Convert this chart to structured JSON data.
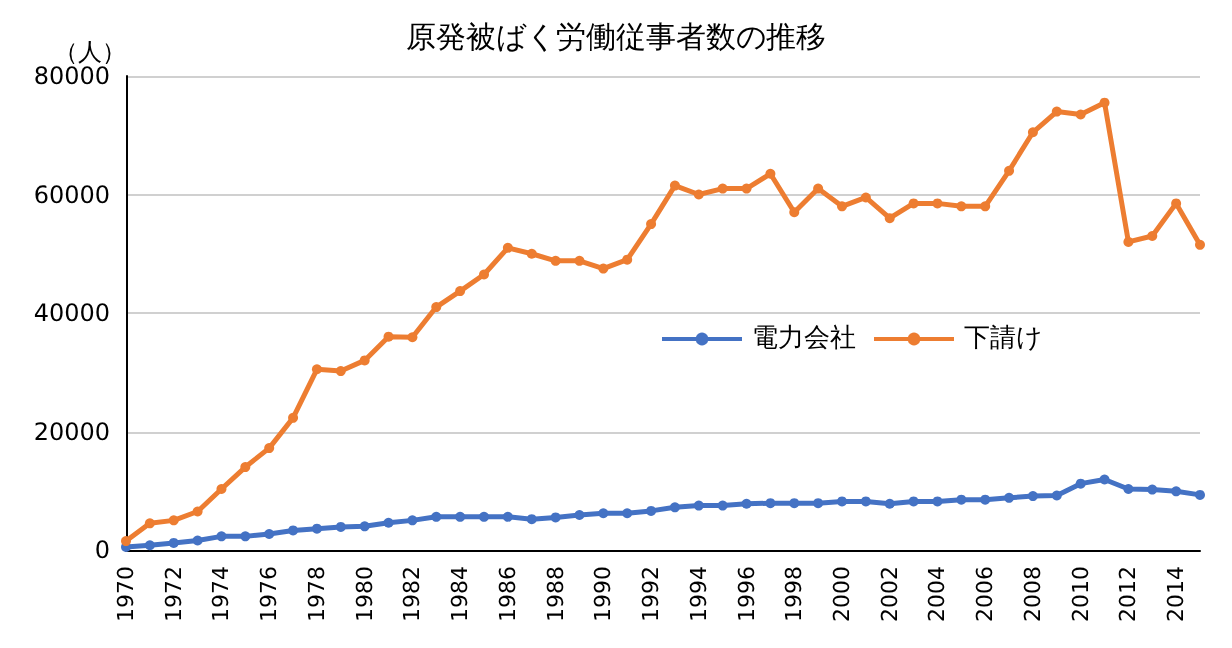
{
  "chart_data": {
    "type": "line",
    "title": "原発被ばく労働従事者数の推移",
    "ylabel": "（人）",
    "categories": [
      "1970",
      null,
      "1972",
      null,
      "1974",
      null,
      "1976",
      null,
      "1978",
      null,
      "1980",
      null,
      "1982",
      null,
      "1984",
      null,
      "1986",
      null,
      "1988",
      null,
      "1990",
      null,
      "1992",
      null,
      "1994",
      null,
      "1996",
      null,
      "1998",
      null,
      "2000",
      null,
      "2002",
      null,
      "2004",
      null,
      "2006",
      null,
      "2008",
      null,
      "2010",
      null,
      "2012",
      null,
      "2014",
      null
    ],
    "series": [
      {
        "name": "電力会社",
        "color": "#4472c4",
        "values": [
          500,
          800,
          1200,
          1600,
          2300,
          2300,
          2700,
          3300,
          3600,
          3900,
          4000,
          4600,
          5000,
          5600,
          5600,
          5600,
          5600,
          5200,
          5500,
          5900,
          6200,
          6200,
          6600,
          7200,
          7500,
          7500,
          7800,
          7900,
          7900,
          7900,
          8200,
          8200,
          7800,
          8200,
          8200,
          8500,
          8500,
          8800,
          9100,
          9200,
          11200,
          11900,
          10300,
          10200,
          9900,
          9300
        ]
      },
      {
        "name": "下請け",
        "color": "#ed7d31",
        "values": [
          1500,
          4500,
          5000,
          6500,
          10300,
          14000,
          17200,
          22300,
          30500,
          30200,
          32000,
          36000,
          35900,
          41000,
          43700,
          46500,
          51000,
          50000,
          48800,
          48800,
          47500,
          49000,
          55000,
          61500,
          60000,
          61000,
          61000,
          63500,
          57000,
          61000,
          58000,
          59500,
          56000,
          58500,
          58500,
          58000,
          58000,
          64000,
          70500,
          74000,
          73500,
          75500,
          52000,
          53000,
          58500,
          51500
        ]
      }
    ],
    "ylim": [
      0,
      80000
    ],
    "yticks": [
      0,
      20000,
      40000,
      60000,
      80000
    ],
    "grid": "y",
    "legend": "right",
    "marker": "circle",
    "line_style": "solid"
  }
}
